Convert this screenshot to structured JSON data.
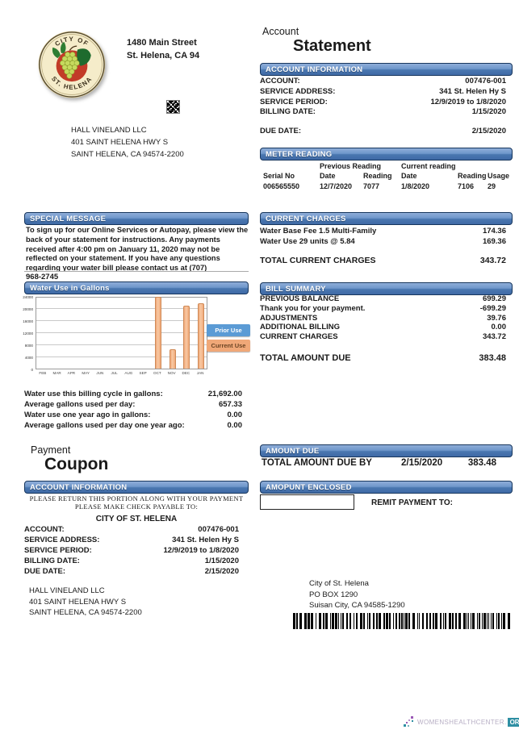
{
  "seal": {
    "arc_top": "CITY OF",
    "arc_bottom": "ST. HELENA"
  },
  "header": {
    "office_address": [
      "1480 Main Street",
      "St. Helena, CA 94"
    ],
    "doc_type_line1": "Account",
    "doc_type_line2": "Statement"
  },
  "recipient_address": [
    "HALL VINELAND LLC",
    "401 SAINT HELENA HWY S",
    "SAINT HELENA, CA 94574-2200"
  ],
  "account_information": {
    "title": "ACCOUNT INFORMATION",
    "rows": [
      {
        "label": "ACCOUNT:",
        "value": "007476-001"
      },
      {
        "label": "SERVICE ADDRESS:",
        "value": "341 St. Helen Hy S"
      },
      {
        "label": "SERVICE PERIOD:",
        "value": "12/9/2019 to 1/8/2020"
      },
      {
        "label": "BILLING DATE:",
        "value": "1/15/2020"
      }
    ],
    "due_row": {
      "label": "DUE DATE:",
      "value": "2/15/2020"
    }
  },
  "meter_reading": {
    "title": "METER READING",
    "group_previous": "Previous Reading",
    "group_current": "Current reading",
    "columns": [
      "Serial No",
      "Date",
      "Reading",
      "Date",
      "Reading",
      "Usage"
    ],
    "values": [
      "006565550",
      "12/7/2020",
      "7077",
      "1/8/2020",
      "7106",
      "29"
    ]
  },
  "special_message": {
    "title": "SPECIAL MESSAGE",
    "body": "To sign up for our Online Services or Autopay, please view the back of your statement for instructions. Any payments received after 4:00 pm on January 11, 2020 may not be reflected on your statement. If you have any questions regarding your water bill please contact us at (707)",
    "phone": "968-2745"
  },
  "water_use": {
    "title": "Water Use in Gallons",
    "stats": [
      {
        "label": "Water use this billing cycle in gallons:",
        "value": "21,692.00"
      },
      {
        "label": "Average gallons used per day:",
        "value": "657.33"
      },
      {
        "label": "Water use one year ago in gallons:",
        "value": "0.00"
      },
      {
        "label": "Average gallons used per day one year ago:",
        "value": "0.00"
      }
    ]
  },
  "chart_data": {
    "type": "bar",
    "title": "Water Use in Gallons",
    "categories": [
      "FEB",
      "MAR",
      "APR",
      "MAY",
      "JUN",
      "JUL",
      "AUG",
      "SEP",
      "OCT",
      "NOV",
      "DEC",
      "JAN"
    ],
    "series": [
      {
        "name": "Prior Use",
        "color": "#5b9bd5",
        "values": [
          0,
          0,
          0,
          0,
          0,
          0,
          0,
          0,
          0,
          0,
          0,
          0
        ]
      },
      {
        "name": "Current Use",
        "color": "#f0a878",
        "values": [
          0,
          0,
          0,
          0,
          0,
          0,
          0,
          0,
          23700,
          6400,
          20800,
          21692
        ]
      }
    ],
    "xlabel": "",
    "ylabel": "",
    "ylim": [
      0,
      24000
    ],
    "yticks": [
      0,
      4000,
      8000,
      12000,
      16000,
      20000,
      24000
    ],
    "grid": true,
    "legend_position": "right"
  },
  "current_charges": {
    "title": "CURRENT CHARGES",
    "rows": [
      {
        "label": "Water Base Fee 1.5 Multi-Family",
        "value": "174.36"
      },
      {
        "label": "Water Use 29 units @ 5.84",
        "value": "169.36"
      }
    ],
    "total": {
      "label": "TOTAL CURRENT CHARGES",
      "value": "343.72"
    }
  },
  "bill_summary": {
    "title": "BILL SUMMARY",
    "rows": [
      {
        "label": "PREVIOUS BALANCE",
        "value": "699.29"
      },
      {
        "label": "Thank you for your payment.",
        "value": "-699.29"
      },
      {
        "label": "ADJUSTMENTS",
        "value": "39.76"
      },
      {
        "label": "ADDITIONAL BILLING",
        "value": "0.00"
      },
      {
        "label": "CURRENT CHARGES",
        "value": "343.72"
      }
    ],
    "total": {
      "label": "TOTAL AMOUNT DUE",
      "value": "383.48"
    }
  },
  "coupon": {
    "heading_line1": "Payment",
    "heading_line2": "Coupon",
    "section_title": "ACCOUNT INFORMATION",
    "notice_line1": "PLEASE RETURN THIS PORTION ALONG WITH YOUR PAYMENT",
    "notice_line2": "PLEASE MAKE CHECK PAYABLE TO:",
    "payable_to": "CITY OF ST. HELENA",
    "rows": [
      {
        "label": "ACCOUNT:",
        "value": "007476-001"
      },
      {
        "label": "SERVICE ADDRESS:",
        "value": "341 St. Helen Hy S"
      },
      {
        "label": "SERVICE PERIOD:",
        "value": "12/9/2019 to 1/8/2020"
      },
      {
        "label": "BILLING DATE:",
        "value": "1/15/2020"
      },
      {
        "label": "DUE DATE:",
        "value": "2/15/2020"
      }
    ],
    "recipient_address": [
      "HALL VINELAND LLC",
      "401 SAINT HELENA HWY S",
      "SAINT HELENA, CA 94574-2200"
    ]
  },
  "amount_due": {
    "title": "AMOUNT DUE",
    "label": "TOTAL AMOUNT DUE BY",
    "date": "2/15/2020",
    "amount": "383.48"
  },
  "amount_enclosed": {
    "title": "AMOPUNT ENCLOSED",
    "input_value": "",
    "remit_label": "REMIT PAYMENT TO:",
    "remit_address": [
      "City of St. Helena",
      "PO BOX 1290",
      "Suisan City, CA 94585-1290"
    ]
  },
  "watermark": {
    "text": "WOMENSHEALTHCENTER.",
    "suffix": "ORG"
  },
  "colors": {
    "header_bar_top": "#8fadd8",
    "header_bar_bottom": "#3f6aa6",
    "header_border": "#17365d",
    "prior_use_blue": "#5b9bd5",
    "current_use_orange": "#f0a878",
    "seal_red": "#c23b28",
    "grape_green": "#c6d95e",
    "watermark_teal": "#2e8fa3"
  }
}
